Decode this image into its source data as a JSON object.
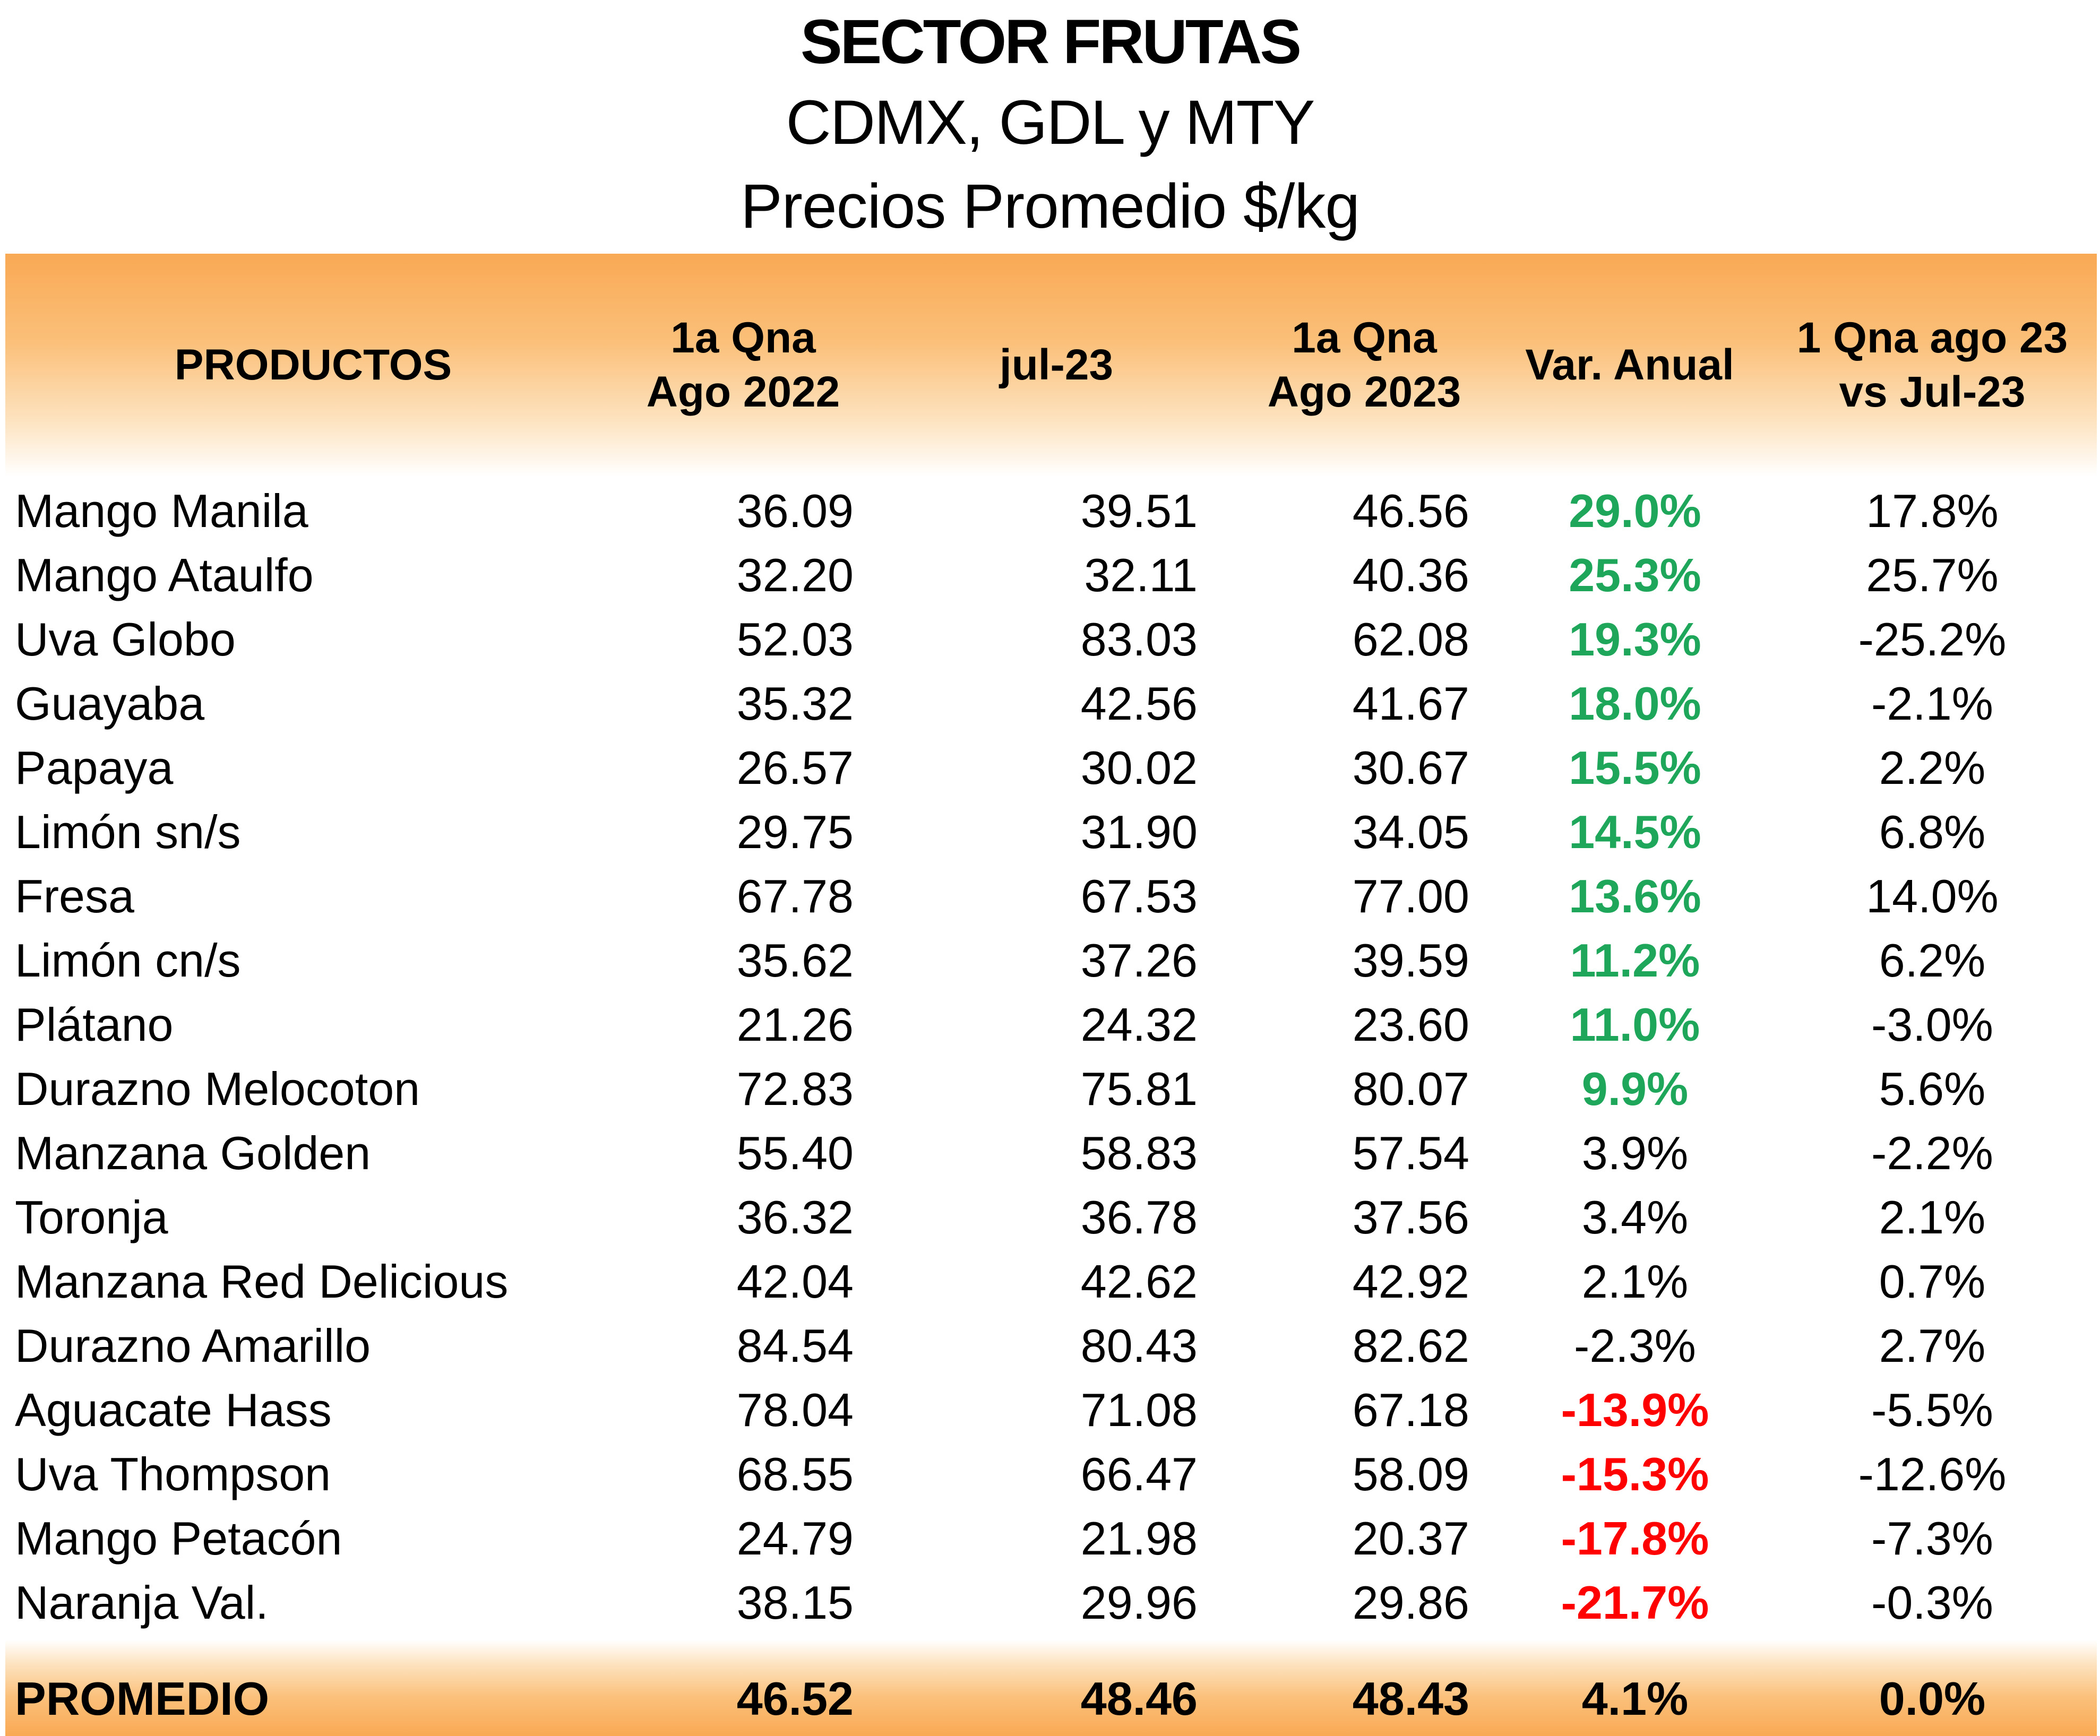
{
  "title": "SECTOR FRUTAS",
  "subtitle_1": "CDMX, GDL y MTY",
  "subtitle_2": "Precios Promedio $/kg",
  "colors": {
    "header_orange": "#f9a954",
    "positive_green": "#1ea65a",
    "negative_red": "#ff0000"
  },
  "chart_data": {
    "type": "table",
    "title": "SECTOR FRUTAS",
    "columns": [
      {
        "key": "producto",
        "line1": "PRODUCTOS",
        "line2": ""
      },
      {
        "key": "ago2022",
        "line1": "1a Qna",
        "line2": "Ago 2022"
      },
      {
        "key": "jul23",
        "line1": "jul-23",
        "line2": ""
      },
      {
        "key": "ago2023",
        "line1": "1a Qna",
        "line2": "Ago 2023"
      },
      {
        "key": "var_anual",
        "line1": "Var. Anual",
        "line2": ""
      },
      {
        "key": "var_qna",
        "line1": "1 Qna ago 23",
        "line2": "vs Jul-23"
      }
    ],
    "rows": [
      {
        "producto": "Mango Manila",
        "ago2022": "36.09",
        "jul23": "39.51",
        "ago2023": "46.56",
        "var_anual": "29.0%",
        "var_qna": "17.8%",
        "trend": "pos"
      },
      {
        "producto": "Mango Ataulfo",
        "ago2022": "32.20",
        "jul23": "32.11",
        "ago2023": "40.36",
        "var_anual": "25.3%",
        "var_qna": "25.7%",
        "trend": "pos"
      },
      {
        "producto": "Uva Globo",
        "ago2022": "52.03",
        "jul23": "83.03",
        "ago2023": "62.08",
        "var_anual": "19.3%",
        "var_qna": "-25.2%",
        "trend": "pos"
      },
      {
        "producto": "Guayaba",
        "ago2022": "35.32",
        "jul23": "42.56",
        "ago2023": "41.67",
        "var_anual": "18.0%",
        "var_qna": "-2.1%",
        "trend": "pos"
      },
      {
        "producto": "Papaya",
        "ago2022": "26.57",
        "jul23": "30.02",
        "ago2023": "30.67",
        "var_anual": "15.5%",
        "var_qna": "2.2%",
        "trend": "pos"
      },
      {
        "producto": "Limón sn/s",
        "ago2022": "29.75",
        "jul23": "31.90",
        "ago2023": "34.05",
        "var_anual": "14.5%",
        "var_qna": "6.8%",
        "trend": "pos"
      },
      {
        "producto": "Fresa",
        "ago2022": "67.78",
        "jul23": "67.53",
        "ago2023": "77.00",
        "var_anual": "13.6%",
        "var_qna": "14.0%",
        "trend": "pos"
      },
      {
        "producto": "Limón cn/s",
        "ago2022": "35.62",
        "jul23": "37.26",
        "ago2023": "39.59",
        "var_anual": "11.2%",
        "var_qna": "6.2%",
        "trend": "pos"
      },
      {
        "producto": "Plátano",
        "ago2022": "21.26",
        "jul23": "24.32",
        "ago2023": "23.60",
        "var_anual": "11.0%",
        "var_qna": "-3.0%",
        "trend": "pos"
      },
      {
        "producto": "Durazno Melocoton",
        "ago2022": "72.83",
        "jul23": "75.81",
        "ago2023": "80.07",
        "var_anual": "9.9%",
        "var_qna": "5.6%",
        "trend": "pos"
      },
      {
        "producto": "Manzana Golden",
        "ago2022": "55.40",
        "jul23": "58.83",
        "ago2023": "57.54",
        "var_anual": "3.9%",
        "var_qna": "-2.2%",
        "trend": "neu"
      },
      {
        "producto": "Toronja",
        "ago2022": "36.32",
        "jul23": "36.78",
        "ago2023": "37.56",
        "var_anual": "3.4%",
        "var_qna": "2.1%",
        "trend": "neu"
      },
      {
        "producto": "Manzana Red Delicious",
        "ago2022": "42.04",
        "jul23": "42.62",
        "ago2023": "42.92",
        "var_anual": "2.1%",
        "var_qna": "0.7%",
        "trend": "neu"
      },
      {
        "producto": "Durazno Amarillo",
        "ago2022": "84.54",
        "jul23": "80.43",
        "ago2023": "82.62",
        "var_anual": "-2.3%",
        "var_qna": "2.7%",
        "trend": "neu"
      },
      {
        "producto": "Aguacate Hass",
        "ago2022": "78.04",
        "jul23": "71.08",
        "ago2023": "67.18",
        "var_anual": "-13.9%",
        "var_qna": "-5.5%",
        "trend": "neg"
      },
      {
        "producto": "Uva Thompson",
        "ago2022": "68.55",
        "jul23": "66.47",
        "ago2023": "58.09",
        "var_anual": "-15.3%",
        "var_qna": "-12.6%",
        "trend": "neg"
      },
      {
        "producto": "Mango Petacón",
        "ago2022": "24.79",
        "jul23": "21.98",
        "ago2023": "20.37",
        "var_anual": "-17.8%",
        "var_qna": "-7.3%",
        "trend": "neg"
      },
      {
        "producto": "Naranja Val.",
        "ago2022": "38.15",
        "jul23": "29.96",
        "ago2023": "29.86",
        "var_anual": "-21.7%",
        "var_qna": "-0.3%",
        "trend": "neg"
      }
    ],
    "footer": {
      "producto": "PROMEDIO",
      "ago2022": "46.52",
      "jul23": "48.46",
      "ago2023": "48.43",
      "var_anual": "4.1%",
      "var_qna": "0.0%"
    }
  }
}
